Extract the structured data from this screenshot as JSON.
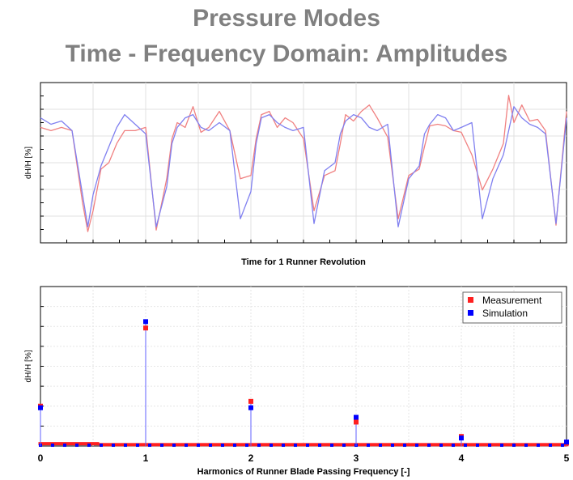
{
  "title_line1": "Pressure Modes",
  "title_line2": "Time - Frequency Domain: Amplitudes",
  "colors": {
    "measurement": "#ff2020",
    "simulation": "#0000ff",
    "time_measurement": "#f08080",
    "time_simulation": "#8080f0"
  },
  "chart_data": [
    {
      "type": "line",
      "title": "",
      "xlabel": "Time for 1 Runner Revolution",
      "ylabel": "dH/H [%]",
      "xlim": [
        0,
        1
      ],
      "ylim": [
        0,
        1
      ],
      "grid": true,
      "x": [
        0.0,
        0.02,
        0.04,
        0.06,
        0.08,
        0.09,
        0.1,
        0.115,
        0.13,
        0.145,
        0.16,
        0.18,
        0.2,
        0.22,
        0.24,
        0.25,
        0.26,
        0.275,
        0.29,
        0.305,
        0.32,
        0.34,
        0.36,
        0.38,
        0.4,
        0.41,
        0.42,
        0.435,
        0.45,
        0.465,
        0.48,
        0.5,
        0.52,
        0.54,
        0.56,
        0.57,
        0.58,
        0.595,
        0.61,
        0.625,
        0.64,
        0.66,
        0.68,
        0.7,
        0.72,
        0.73,
        0.74,
        0.755,
        0.77,
        0.785,
        0.8,
        0.82,
        0.84,
        0.86,
        0.88,
        0.89,
        0.9,
        0.915,
        0.93,
        0.945,
        0.96,
        0.98,
        1.0
      ],
      "series": [
        {
          "name": "Measurement",
          "values": [
            0.72,
            0.7,
            0.72,
            0.7,
            0.25,
            0.07,
            0.2,
            0.46,
            0.5,
            0.62,
            0.7,
            0.7,
            0.72,
            0.08,
            0.4,
            0.65,
            0.75,
            0.72,
            0.85,
            0.69,
            0.72,
            0.82,
            0.7,
            0.4,
            0.42,
            0.65,
            0.8,
            0.82,
            0.72,
            0.78,
            0.75,
            0.65,
            0.2,
            0.42,
            0.45,
            0.62,
            0.8,
            0.76,
            0.82,
            0.86,
            0.78,
            0.66,
            0.15,
            0.42,
            0.46,
            0.6,
            0.73,
            0.74,
            0.73,
            0.7,
            0.69,
            0.55,
            0.33,
            0.46,
            0.62,
            0.92,
            0.75,
            0.86,
            0.76,
            0.77,
            0.7,
            0.11,
            0.82
          ]
        },
        {
          "name": "Simulation",
          "values": [
            0.78,
            0.74,
            0.76,
            0.7,
            0.3,
            0.1,
            0.3,
            0.48,
            0.6,
            0.72,
            0.8,
            0.74,
            0.68,
            0.1,
            0.35,
            0.62,
            0.72,
            0.78,
            0.8,
            0.72,
            0.7,
            0.75,
            0.7,
            0.15,
            0.32,
            0.62,
            0.78,
            0.8,
            0.75,
            0.72,
            0.7,
            0.72,
            0.12,
            0.45,
            0.5,
            0.68,
            0.76,
            0.8,
            0.78,
            0.72,
            0.7,
            0.74,
            0.1,
            0.4,
            0.48,
            0.68,
            0.74,
            0.8,
            0.78,
            0.7,
            0.72,
            0.75,
            0.15,
            0.4,
            0.55,
            0.7,
            0.85,
            0.78,
            0.74,
            0.72,
            0.68,
            0.12,
            0.78
          ]
        }
      ]
    },
    {
      "type": "scatter",
      "title": "",
      "xlabel": "Harmonics of Runner Blade Passing Frequency [-]",
      "ylabel": "dH/H [%]",
      "xlim": [
        0,
        5
      ],
      "ylim": [
        0,
        1
      ],
      "grid": true,
      "x_ticks": [
        "0",
        "1",
        "2",
        "3",
        "4",
        "5"
      ],
      "legend_position": "top-right",
      "series": [
        {
          "name": "Measurement",
          "x": [
            0,
            1,
            2,
            3,
            4,
            5
          ],
          "values": [
            0.25,
            0.74,
            0.28,
            0.15,
            0.06,
            0.02
          ]
        },
        {
          "name": "Simulation",
          "x": [
            0,
            1,
            2,
            3,
            4,
            5
          ],
          "values": [
            0.24,
            0.78,
            0.24,
            0.18,
            0.05,
            0.025
          ]
        }
      ]
    }
  ]
}
